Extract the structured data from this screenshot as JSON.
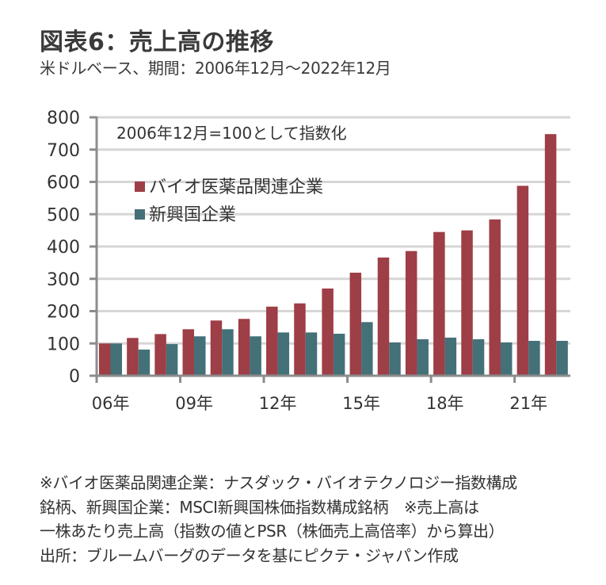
{
  "header": {
    "title": "図表6：売上高の推移",
    "subtitle": "米ドルベース、期間：2006年12月～2022年12月"
  },
  "chart_data": {
    "type": "bar",
    "title": "図表6：売上高の推移",
    "subtitle": "米ドルベース、期間：2006年12月～2022年12月",
    "annotation": "2006年12月=100として指数化",
    "xlabel": "",
    "ylabel": "",
    "ylim": [
      0,
      800
    ],
    "yticks": [
      0,
      100,
      200,
      300,
      400,
      500,
      600,
      700,
      800
    ],
    "ytick_labels": [
      "0",
      "100",
      "200",
      "300",
      "400",
      "500",
      "600",
      "700",
      "800"
    ],
    "grid": true,
    "legend_position": "top-left",
    "categories": [
      "2006",
      "2007",
      "2008",
      "2009",
      "2010",
      "2011",
      "2012",
      "2013",
      "2014",
      "2015",
      "2016",
      "2017",
      "2018",
      "2019",
      "2020",
      "2021",
      "2022"
    ],
    "xtick_labels": [
      {
        "index": 0,
        "label": "06年"
      },
      {
        "index": 3,
        "label": "09年"
      },
      {
        "index": 6,
        "label": "12年"
      },
      {
        "index": 9,
        "label": "15年"
      },
      {
        "index": 12,
        "label": "18年"
      },
      {
        "index": 15,
        "label": "21年"
      }
    ],
    "series": [
      {
        "name": "バイオ医薬品関連企業",
        "color": "#9e3e46",
        "values": [
          100,
          117,
          129,
          144,
          171,
          176,
          214,
          224,
          270,
          319,
          366,
          386,
          445,
          450,
          484,
          588,
          748
        ]
      },
      {
        "name": "新興国企業",
        "color": "#447078",
        "values": [
          100,
          81,
          98,
          122,
          144,
          122,
          134,
          134,
          130,
          166,
          103,
          113,
          118,
          113,
          103,
          108,
          108
        ]
      }
    ]
  },
  "notes": [
    "※バイオ医薬品関連企業：ナスダック・バイオテクノロジー指数構成",
    "銘柄、新興国企業：MSCI新興国株価指数構成銘柄　※売上高は",
    "一株あたり売上高（指数の値とPSR（株価売上高倍率）から算出）",
    "出所：ブルームバーグのデータを基にピクテ・ジャパン作成"
  ]
}
